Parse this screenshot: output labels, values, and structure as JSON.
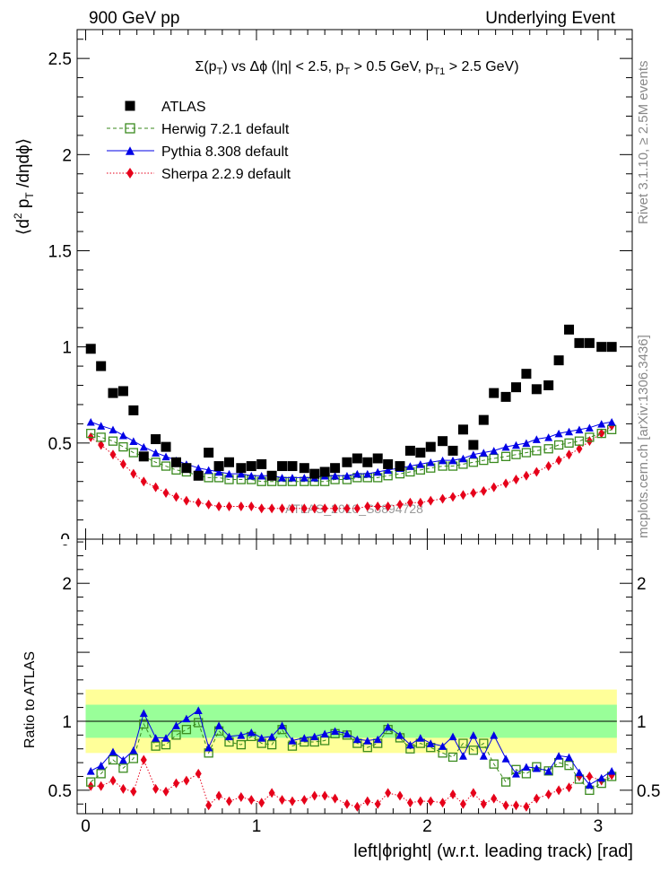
{
  "header": {
    "left": "900 GeV pp",
    "right": "Underlying Event"
  },
  "plot_title": {
    "sigma": "Σ(p",
    "sigma_sub": "T",
    "mid": ") vs Δϕ (|η| < 2.5, p",
    "mid_sub": "T",
    "tail1": " > 0.5 GeV, p",
    "tail1_sub": "T1",
    "tail2": " > 2.5 GeV)"
  },
  "ylabel_main": {
    "open": "⟨d",
    "sup": "2",
    "mid": " p",
    "sub": "T",
    "rest": " /dηdϕ⟩"
  },
  "ylabel_ratio": "Ratio to ATLAS",
  "xlabel": "left|ϕright| (w.r.t. leading track) [rad]",
  "side_right_1": "Rivet 3.1.10, ≥ 2.5M events",
  "side_right_2": "mcplots.cern.ch [arXiv:1306.3436]",
  "watermark": "ATLAS_2010_S8894728",
  "legend": [
    {
      "label": "ATLAS",
      "color": "#000000",
      "marker": "square-filled"
    },
    {
      "label": "Herwig 7.2.1 default",
      "color": "#3a8a1e",
      "marker": "square-open",
      "line": "dashed"
    },
    {
      "label": "Pythia 8.308 default",
      "color": "#0000e6",
      "marker": "triangle",
      "line": "solid"
    },
    {
      "label": "Sherpa 2.2.9 default",
      "color": "#e6001a",
      "marker": "diamond",
      "line": "dotted"
    }
  ],
  "chart_data": [
    {
      "type": "scatter",
      "panel": "main",
      "xlim": [
        -0.05,
        3.2
      ],
      "ylim": [
        0,
        2.65
      ],
      "x_ticks": [
        0,
        1,
        2,
        3
      ],
      "y_ticks": [
        "0",
        "0.5",
        "1",
        "1.5",
        "2",
        "2.5"
      ],
      "y_tick_values": [
        0,
        0.5,
        1,
        1.5,
        2,
        2.5
      ],
      "x": [
        0.03,
        0.09,
        0.16,
        0.22,
        0.28,
        0.34,
        0.41,
        0.47,
        0.53,
        0.59,
        0.66,
        0.72,
        0.78,
        0.84,
        0.91,
        0.97,
        1.03,
        1.09,
        1.15,
        1.21,
        1.28,
        1.34,
        1.4,
        1.46,
        1.53,
        1.59,
        1.65,
        1.71,
        1.77,
        1.84,
        1.9,
        1.96,
        2.02,
        2.09,
        2.15,
        2.21,
        2.27,
        2.33,
        2.39,
        2.46,
        2.52,
        2.58,
        2.64,
        2.71,
        2.77,
        2.83,
        2.89,
        2.95,
        3.02,
        3.08
      ],
      "series": [
        {
          "name": "ATLAS",
          "color": "#000000",
          "marker": "square-filled",
          "values": [
            0.99,
            0.9,
            0.76,
            0.77,
            0.67,
            0.43,
            0.52,
            0.48,
            0.4,
            0.37,
            0.33,
            0.45,
            0.38,
            0.4,
            0.37,
            0.38,
            0.39,
            0.33,
            0.38,
            0.38,
            0.37,
            0.34,
            0.35,
            0.37,
            0.4,
            0.42,
            0.4,
            0.42,
            0.39,
            0.38,
            0.46,
            0.45,
            0.48,
            0.51,
            0.46,
            0.57,
            0.49,
            0.62,
            0.76,
            0.74,
            0.79,
            0.86,
            0.78,
            0.8,
            0.93,
            1.09,
            1.02,
            1.02,
            1.0,
            1.0
          ]
        },
        {
          "name": "Herwig 7.2.1 default",
          "color": "#3a8a1e",
          "marker": "square-open",
          "values": [
            0.55,
            0.53,
            0.51,
            0.48,
            0.45,
            0.43,
            0.4,
            0.38,
            0.36,
            0.35,
            0.33,
            0.32,
            0.32,
            0.31,
            0.31,
            0.31,
            0.3,
            0.3,
            0.3,
            0.3,
            0.3,
            0.3,
            0.3,
            0.31,
            0.31,
            0.32,
            0.32,
            0.32,
            0.33,
            0.34,
            0.35,
            0.36,
            0.37,
            0.38,
            0.38,
            0.39,
            0.4,
            0.41,
            0.42,
            0.43,
            0.44,
            0.45,
            0.46,
            0.47,
            0.49,
            0.5,
            0.51,
            0.53,
            0.55,
            0.57
          ]
        },
        {
          "name": "Pythia 8.308 default",
          "color": "#0000e6",
          "marker": "triangle",
          "values": [
            0.61,
            0.59,
            0.57,
            0.54,
            0.51,
            0.48,
            0.45,
            0.43,
            0.41,
            0.39,
            0.37,
            0.36,
            0.35,
            0.34,
            0.34,
            0.33,
            0.33,
            0.33,
            0.32,
            0.32,
            0.32,
            0.32,
            0.33,
            0.33,
            0.33,
            0.34,
            0.34,
            0.35,
            0.36,
            0.37,
            0.38,
            0.39,
            0.4,
            0.41,
            0.41,
            0.42,
            0.44,
            0.45,
            0.46,
            0.48,
            0.49,
            0.5,
            0.52,
            0.53,
            0.55,
            0.56,
            0.57,
            0.58,
            0.6,
            0.61
          ]
        },
        {
          "name": "Sherpa 2.2.9 default",
          "color": "#e6001a",
          "marker": "diamond",
          "values": [
            0.53,
            0.49,
            0.44,
            0.39,
            0.34,
            0.3,
            0.27,
            0.24,
            0.22,
            0.2,
            0.19,
            0.18,
            0.17,
            0.17,
            0.17,
            0.17,
            0.16,
            0.16,
            0.16,
            0.16,
            0.16,
            0.16,
            0.16,
            0.16,
            0.16,
            0.16,
            0.17,
            0.17,
            0.17,
            0.18,
            0.19,
            0.19,
            0.2,
            0.21,
            0.22,
            0.23,
            0.24,
            0.25,
            0.27,
            0.29,
            0.31,
            0.33,
            0.35,
            0.38,
            0.41,
            0.44,
            0.47,
            0.51,
            0.55,
            0.59
          ]
        }
      ]
    },
    {
      "type": "scatter",
      "panel": "ratio",
      "xlim": [
        -0.05,
        3.2
      ],
      "ylim": [
        0.33,
        2.32
      ],
      "x_ticks": [
        "0",
        "1",
        "2",
        "3"
      ],
      "x_tick_values": [
        0,
        1,
        2,
        3
      ],
      "y_ticks": [
        "0.5",
        "1",
        "2"
      ],
      "y_tick_values": [
        0.5,
        1,
        2
      ],
      "reference": 1,
      "band_outer": 0.23,
      "band_inner": 0.12,
      "x": [
        0.03,
        0.09,
        0.16,
        0.22,
        0.28,
        0.34,
        0.41,
        0.47,
        0.53,
        0.59,
        0.66,
        0.72,
        0.78,
        0.84,
        0.91,
        0.97,
        1.03,
        1.09,
        1.15,
        1.21,
        1.28,
        1.34,
        1.4,
        1.46,
        1.53,
        1.59,
        1.65,
        1.71,
        1.77,
        1.84,
        1.9,
        1.96,
        2.02,
        2.09,
        2.15,
        2.21,
        2.27,
        2.33,
        2.39,
        2.46,
        2.52,
        2.58,
        2.64,
        2.71,
        2.77,
        2.83,
        2.89,
        2.95,
        3.02,
        3.08
      ],
      "series": [
        {
          "name": "Herwig 7.2.1 default",
          "color": "#3a8a1e",
          "marker": "square-open",
          "values": [
            0.56,
            0.62,
            0.72,
            0.66,
            0.73,
            0.98,
            0.82,
            0.83,
            0.9,
            0.94,
            0.99,
            0.77,
            0.93,
            0.85,
            0.83,
            0.89,
            0.84,
            0.83,
            0.94,
            0.82,
            0.85,
            0.85,
            0.86,
            0.91,
            0.9,
            0.84,
            0.81,
            0.84,
            0.94,
            0.88,
            0.8,
            0.84,
            0.81,
            0.77,
            0.74,
            0.84,
            0.79,
            0.84,
            0.69,
            0.56,
            0.65,
            0.62,
            0.67,
            0.64,
            0.7,
            0.68,
            0.58,
            0.5,
            0.55,
            0.6
          ]
        },
        {
          "name": "Pythia 8.308 default",
          "color": "#0000e6",
          "marker": "triangle",
          "values": [
            0.64,
            0.68,
            0.78,
            0.72,
            0.79,
            1.06,
            0.88,
            0.88,
            0.97,
            1.02,
            1.08,
            0.81,
            0.97,
            0.89,
            0.9,
            0.92,
            0.88,
            0.89,
            0.97,
            0.86,
            0.88,
            0.89,
            0.91,
            0.93,
            0.91,
            0.87,
            0.86,
            0.87,
            0.96,
            0.9,
            0.83,
            0.88,
            0.84,
            0.82,
            0.89,
            0.75,
            0.9,
            0.75,
            0.9,
            0.73,
            0.62,
            0.67,
            0.66,
            0.64,
            0.75,
            0.74,
            0.63,
            0.54,
            0.59,
            0.64
          ]
        },
        {
          "name": "Sherpa 2.2.9 default",
          "color": "#e6001a",
          "marker": "diamond",
          "values": [
            0.53,
            0.53,
            0.57,
            0.51,
            0.49,
            0.72,
            0.51,
            0.49,
            0.55,
            0.57,
            0.62,
            0.39,
            0.46,
            0.42,
            0.45,
            0.43,
            0.41,
            0.48,
            0.43,
            0.42,
            0.43,
            0.46,
            0.46,
            0.44,
            0.4,
            0.38,
            0.42,
            0.4,
            0.48,
            0.46,
            0.41,
            0.42,
            0.42,
            0.41,
            0.47,
            0.4,
            0.48,
            0.4,
            0.44,
            0.39,
            0.39,
            0.38,
            0.44,
            0.47,
            0.5,
            0.52,
            0.6,
            0.6,
            0.57,
            0.61
          ]
        }
      ]
    }
  ]
}
